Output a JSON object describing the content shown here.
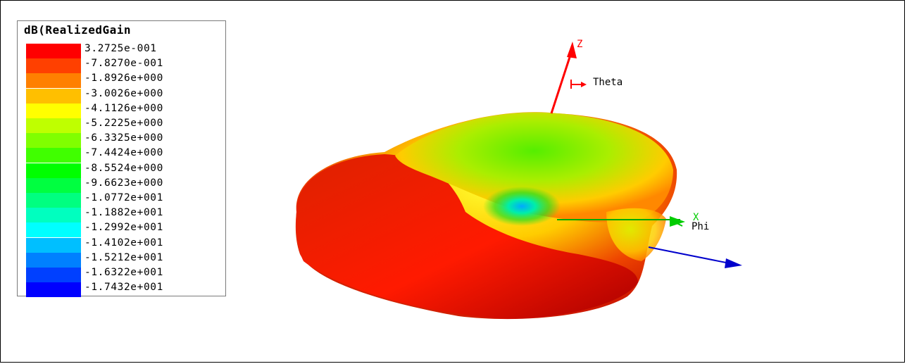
{
  "legend": {
    "title": "dB(RealizedGain",
    "ticks": [
      "3.2725e-001",
      "-7.8270e-001",
      "-1.8926e+000",
      "-3.0026e+000",
      "-4.1126e+000",
      "-5.2225e+000",
      "-6.3325e+000",
      "-7.4424e+000",
      "-8.5524e+000",
      "-9.6623e+000",
      "-1.0772e+001",
      "-1.1882e+001",
      "-1.2992e+001",
      "-1.4102e+001",
      "-1.5212e+001",
      "-1.6322e+001",
      "-1.7432e+001"
    ],
    "colors": [
      "#ff0000",
      "#ff4000",
      "#ff8000",
      "#ffbf00",
      "#ffff00",
      "#bfff00",
      "#80ff00",
      "#40ff00",
      "#00ff00",
      "#00ff40",
      "#00ff80",
      "#00ffbf",
      "#00ffff",
      "#00bfff",
      "#0080ff",
      "#0040ff",
      "#0000ff"
    ]
  },
  "axes": {
    "z_label": "Z",
    "x_label": "X",
    "theta_label": "Theta",
    "phi_label": "Phi",
    "z_color": "#ff0000",
    "x_color": "#00cc00",
    "y_color": "#0000ff"
  }
}
